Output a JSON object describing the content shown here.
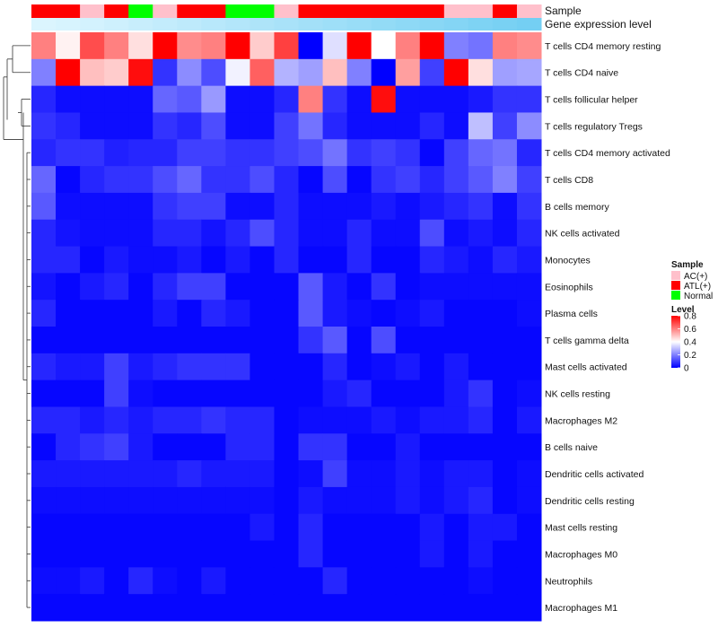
{
  "chart_data": {
    "type": "heatmap",
    "annotation_labels": {
      "sample": "Sample",
      "expression": "Gene expression level"
    },
    "sample_colors": {
      "AC(+)": "#FFC0CB",
      "ATL(+)": "#FF0000",
      "Normal": "#00FF00"
    },
    "samples": [
      "ATL(+)",
      "ATL(+)",
      "AC(+)",
      "ATL(+)",
      "Normal",
      "AC(+)",
      "ATL(+)",
      "ATL(+)",
      "Normal",
      "Normal",
      "AC(+)",
      "ATL(+)",
      "ATL(+)",
      "ATL(+)",
      "ATL(+)",
      "ATL(+)",
      "ATL(+)",
      "AC(+)",
      "AC(+)",
      "ATL(+)",
      "AC(+)"
    ],
    "expression_levels": [
      0.04,
      0.07,
      0.1,
      0.14,
      0.18,
      0.22,
      0.26,
      0.3,
      0.34,
      0.38,
      0.42,
      0.46,
      0.5,
      0.54,
      0.58,
      0.62,
      0.66,
      0.7,
      0.74,
      0.78,
      0.82
    ],
    "rows": [
      "T cells CD4 memory resting",
      "T cells CD4 naive",
      "T cells follicular helper",
      "T cells regulatory  Tregs",
      "T cells CD4 memory activated",
      "T cells CD8",
      "B cells memory",
      "NK cells activated",
      "Monocytes",
      "Eosinophils",
      "Plasma cells",
      "T cells gamma delta",
      "Mast cells activated",
      "NK cells resting",
      "Macrophages M2",
      "B cells naive",
      "Dendritic cells activated",
      "Dendritic cells resting",
      "Mast cells resting",
      "Macrophages M0",
      "Neutrophils",
      "Macrophages M1"
    ],
    "values": [
      [
        0.6,
        0.42,
        0.68,
        0.6,
        0.45,
        0.8,
        0.58,
        0.6,
        0.8,
        0.48,
        0.7,
        0.0,
        0.35,
        0.8,
        0.4,
        0.6,
        0.8,
        0.2,
        0.18,
        0.6,
        0.58
      ],
      [
        0.2,
        0.8,
        0.5,
        0.48,
        0.78,
        0.08,
        0.22,
        0.12,
        0.38,
        0.65,
        0.28,
        0.25,
        0.5,
        0.2,
        0.0,
        0.55,
        0.1,
        0.8,
        0.45,
        0.25,
        0.26
      ],
      [
        0.06,
        0.02,
        0.02,
        0.02,
        0.02,
        0.16,
        0.14,
        0.24,
        0.02,
        0.02,
        0.06,
        0.6,
        0.08,
        0.02,
        0.78,
        0.02,
        0.02,
        0.02,
        0.04,
        0.08,
        0.08
      ],
      [
        0.08,
        0.06,
        0.02,
        0.02,
        0.02,
        0.08,
        0.06,
        0.12,
        0.02,
        0.02,
        0.1,
        0.18,
        0.06,
        0.02,
        0.02,
        0.02,
        0.06,
        0.02,
        0.3,
        0.1,
        0.22
      ],
      [
        0.06,
        0.08,
        0.08,
        0.05,
        0.06,
        0.06,
        0.1,
        0.1,
        0.08,
        0.08,
        0.1,
        0.12,
        0.18,
        0.08,
        0.1,
        0.08,
        0.01,
        0.1,
        0.16,
        0.18,
        0.06
      ],
      [
        0.16,
        0.01,
        0.06,
        0.08,
        0.08,
        0.12,
        0.16,
        0.08,
        0.08,
        0.12,
        0.06,
        0.01,
        0.12,
        0.01,
        0.08,
        0.1,
        0.06,
        0.1,
        0.14,
        0.2,
        0.1
      ],
      [
        0.14,
        0.02,
        0.02,
        0.02,
        0.02,
        0.08,
        0.1,
        0.1,
        0.02,
        0.02,
        0.06,
        0.02,
        0.02,
        0.02,
        0.04,
        0.02,
        0.04,
        0.06,
        0.08,
        0.02,
        0.08
      ],
      [
        0.06,
        0.03,
        0.02,
        0.02,
        0.02,
        0.06,
        0.06,
        0.03,
        0.06,
        0.12,
        0.06,
        0.02,
        0.02,
        0.06,
        0.02,
        0.02,
        0.12,
        0.02,
        0.04,
        0.02,
        0.06
      ],
      [
        0.06,
        0.06,
        0.01,
        0.04,
        0.02,
        0.02,
        0.04,
        0.01,
        0.04,
        0.01,
        0.06,
        0.01,
        0.01,
        0.06,
        0.01,
        0.01,
        0.06,
        0.04,
        0.02,
        0.06,
        0.04
      ],
      [
        0.03,
        0.01,
        0.04,
        0.06,
        0.01,
        0.06,
        0.1,
        0.1,
        0.01,
        0.01,
        0.01,
        0.14,
        0.04,
        0.01,
        0.08,
        0.01,
        0.02,
        0.02,
        0.02,
        0.02,
        0.02
      ],
      [
        0.06,
        0.01,
        0.01,
        0.01,
        0.01,
        0.04,
        0.01,
        0.06,
        0.04,
        0.01,
        0.01,
        0.14,
        0.04,
        0.02,
        0.01,
        0.02,
        0.04,
        0.01,
        0.01,
        0.01,
        0.02
      ],
      [
        0.01,
        0.01,
        0.01,
        0.01,
        0.01,
        0.01,
        0.01,
        0.01,
        0.01,
        0.01,
        0.01,
        0.08,
        0.14,
        0.01,
        0.12,
        0.01,
        0.01,
        0.01,
        0.01,
        0.01,
        0.01
      ],
      [
        0.06,
        0.04,
        0.04,
        0.1,
        0.04,
        0.06,
        0.08,
        0.08,
        0.08,
        0.01,
        0.01,
        0.01,
        0.06,
        0.01,
        0.02,
        0.04,
        0.01,
        0.04,
        0.01,
        0.01,
        0.01
      ],
      [
        0.01,
        0.01,
        0.01,
        0.1,
        0.02,
        0.01,
        0.01,
        0.01,
        0.01,
        0.01,
        0.01,
        0.01,
        0.04,
        0.06,
        0.01,
        0.01,
        0.01,
        0.04,
        0.08,
        0.01,
        0.02
      ],
      [
        0.06,
        0.06,
        0.04,
        0.06,
        0.04,
        0.06,
        0.06,
        0.08,
        0.06,
        0.06,
        0.01,
        0.02,
        0.02,
        0.02,
        0.04,
        0.02,
        0.04,
        0.04,
        0.06,
        0.01,
        0.04
      ],
      [
        0.01,
        0.06,
        0.08,
        0.1,
        0.04,
        0.01,
        0.01,
        0.01,
        0.06,
        0.06,
        0.01,
        0.08,
        0.08,
        0.01,
        0.01,
        0.04,
        0.01,
        0.01,
        0.01,
        0.01,
        0.01
      ],
      [
        0.04,
        0.04,
        0.04,
        0.04,
        0.04,
        0.04,
        0.06,
        0.04,
        0.04,
        0.04,
        0.01,
        0.02,
        0.1,
        0.02,
        0.02,
        0.04,
        0.02,
        0.04,
        0.04,
        0.01,
        0.02
      ],
      [
        0.02,
        0.02,
        0.02,
        0.02,
        0.02,
        0.02,
        0.02,
        0.02,
        0.02,
        0.02,
        0.01,
        0.04,
        0.02,
        0.02,
        0.02,
        0.04,
        0.02,
        0.04,
        0.06,
        0.01,
        0.02
      ],
      [
        0.01,
        0.01,
        0.01,
        0.01,
        0.01,
        0.01,
        0.01,
        0.01,
        0.01,
        0.04,
        0.01,
        0.06,
        0.01,
        0.01,
        0.01,
        0.01,
        0.04,
        0.01,
        0.04,
        0.04,
        0.01
      ],
      [
        0.01,
        0.01,
        0.01,
        0.01,
        0.01,
        0.01,
        0.01,
        0.01,
        0.01,
        0.01,
        0.01,
        0.06,
        0.01,
        0.01,
        0.01,
        0.01,
        0.04,
        0.01,
        0.04,
        0.01,
        0.01
      ],
      [
        0.02,
        0.02,
        0.04,
        0.01,
        0.06,
        0.02,
        0.01,
        0.04,
        0.01,
        0.01,
        0.01,
        0.01,
        0.06,
        0.01,
        0.01,
        0.01,
        0.01,
        0.01,
        0.02,
        0.01,
        0.01
      ],
      [
        0.01,
        0.01,
        0.01,
        0.01,
        0.01,
        0.01,
        0.01,
        0.01,
        0.01,
        0.01,
        0.01,
        0.01,
        0.01,
        0.01,
        0.01,
        0.01,
        0.01,
        0.01,
        0.01,
        0.01,
        0.01
      ]
    ],
    "dendrogram": "row dendrogram clusters the T cell subsets (CD4 memory resting, CD4 naive, follicular helper, Tregs) separately from the remaining immune cell types",
    "color_scale": {
      "min": 0,
      "max": 0.8,
      "low": "#0000FF",
      "mid": "#FFFFFF",
      "high": "#FF0000",
      "ticks": [
        0,
        0.2,
        0.4,
        0.6,
        0.8
      ],
      "tick_labels": [
        "0",
        "0.2",
        "0.4",
        "0.6",
        "0.8"
      ]
    },
    "legend": {
      "sample_title": "Sample",
      "sample_items": [
        "AC(+)",
        "ATL(+)",
        "Normal"
      ],
      "level_title": "Level",
      "position": "right"
    }
  }
}
